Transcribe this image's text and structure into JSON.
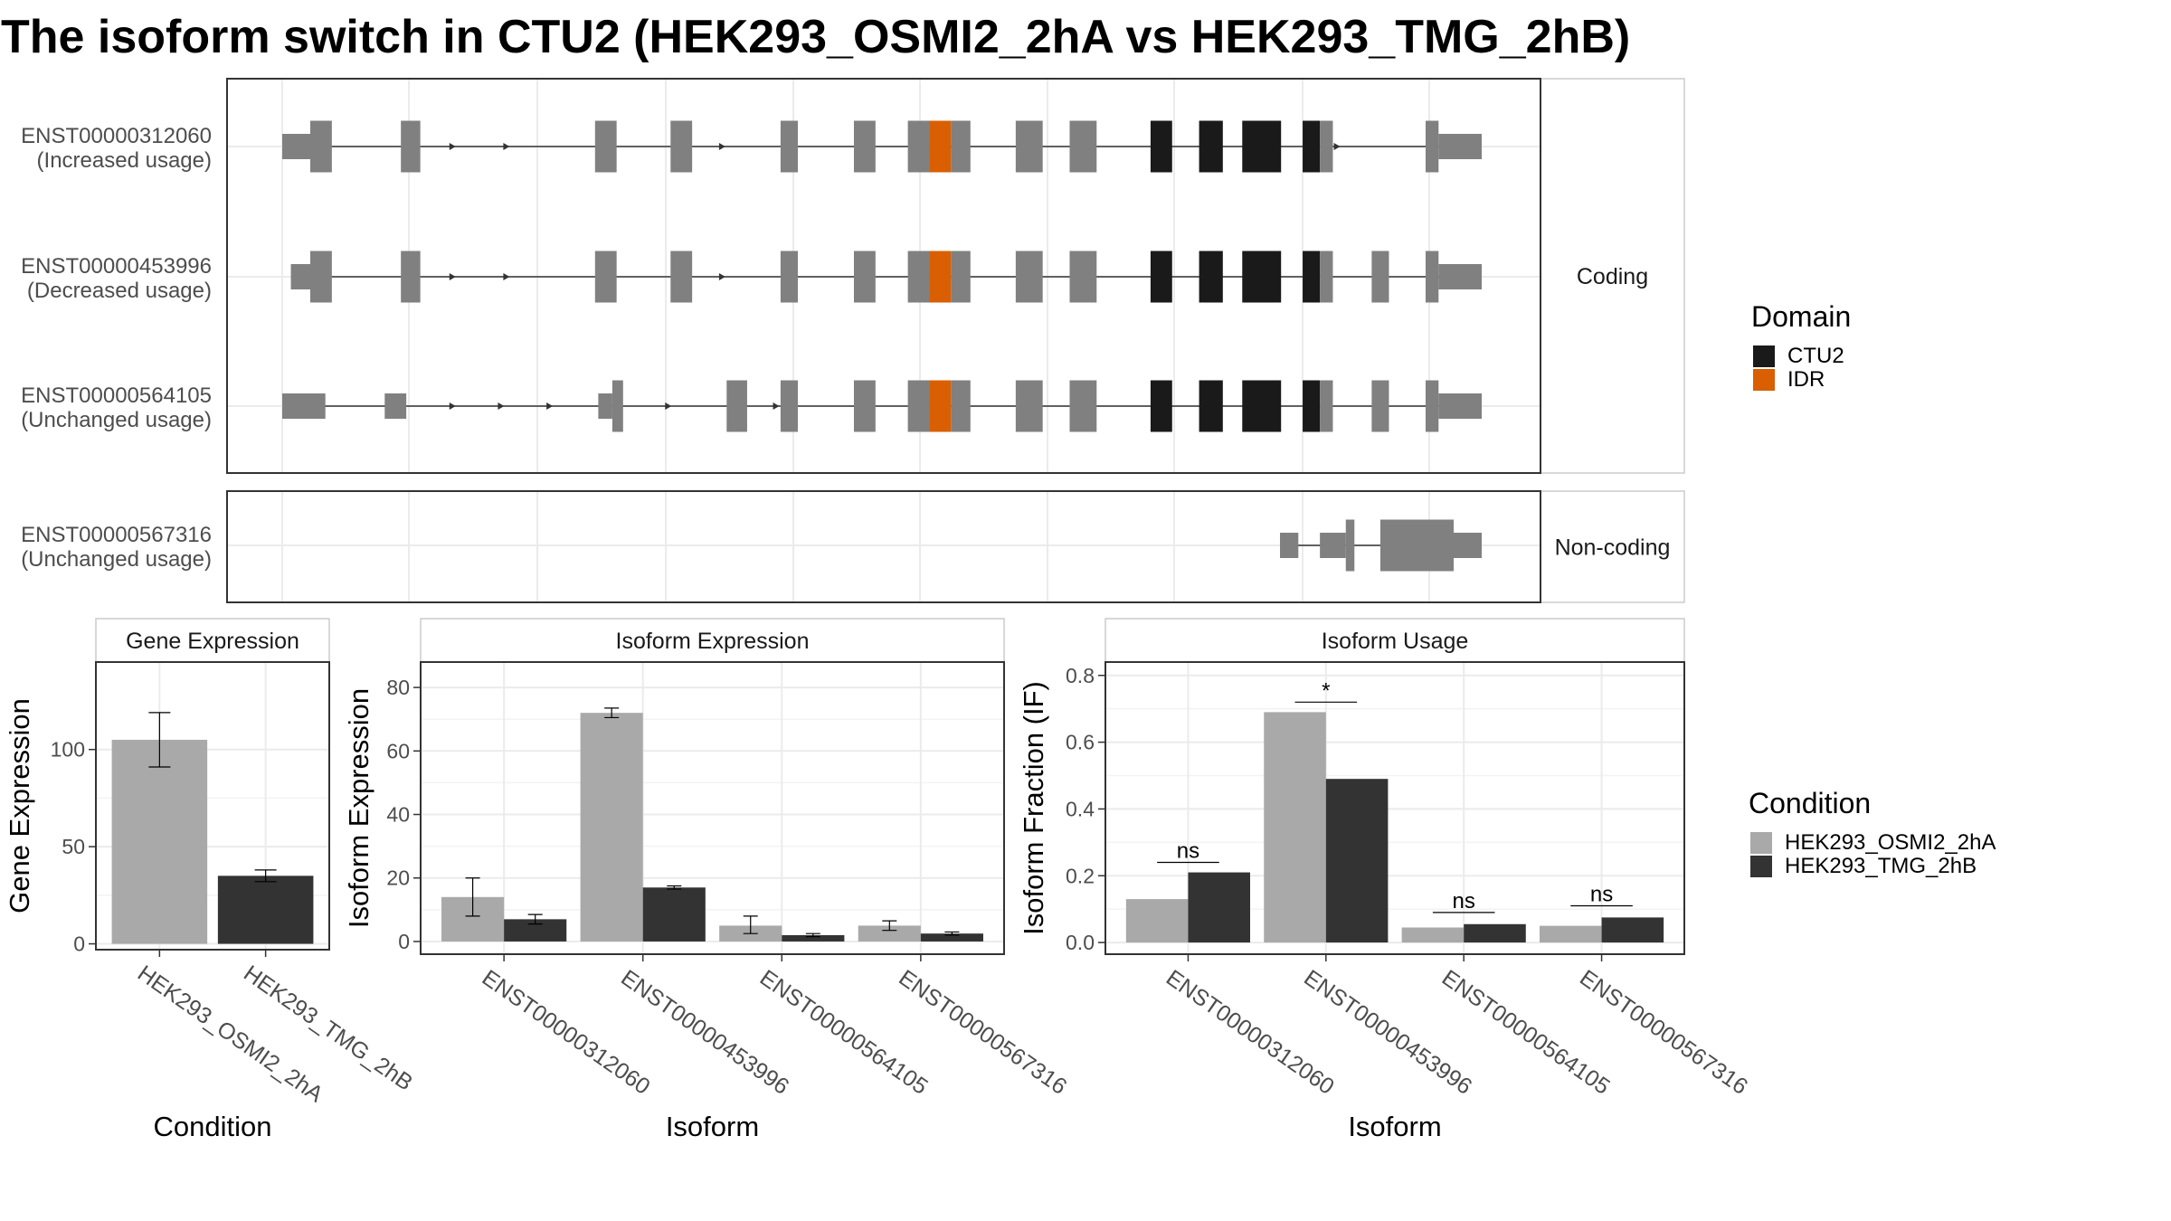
{
  "chart_data": [
    {
      "type": "isoform-structure",
      "title": "The isoform switch in CTU2 (HEK293_OSMI2_2hA vs HEK293_TMG_2hB)",
      "facets": [
        {
          "name": "Coding",
          "isoforms": [
            {
              "id": "ENST00000312060",
              "usage": "(Increased usage)",
              "exons": [
                [
                  0.0,
                  2.6,
                  "utr"
                ],
                [
                  2.6,
                  4.6,
                  "cds"
                ],
                [
                  11.0,
                  12.8,
                  "cds"
                ],
                [
                  29.0,
                  31.0,
                  "cds"
                ],
                [
                  36.0,
                  38.0,
                  "cds"
                ],
                [
                  46.2,
                  47.8,
                  "cds"
                ],
                [
                  53.0,
                  55.0,
                  "cds"
                ],
                [
                  58.0,
                  60.0,
                  "cds"
                ],
                [
                  60.0,
                  62.0,
                  "idr"
                ],
                [
                  62.0,
                  63.8,
                  "cds"
                ],
                [
                  68.0,
                  70.5,
                  "cds"
                ],
                [
                  73.0,
                  75.5,
                  "cds"
                ],
                [
                  80.5,
                  82.5,
                  "ctu2"
                ],
                [
                  85.0,
                  87.2,
                  "ctu2"
                ],
                [
                  89.0,
                  92.6,
                  "ctu2"
                ],
                [
                  94.6,
                  96.2,
                  "ctu2"
                ],
                [
                  96.2,
                  97.4,
                  "cds"
                ],
                [
                  106.0,
                  107.2,
                  "cds"
                ],
                [
                  107.2,
                  111.2,
                  "utr"
                ]
              ],
              "arrows": [
                16.0,
                21.0,
                30.5,
                41.0,
                98.0
              ]
            },
            {
              "id": "ENST00000453996",
              "usage": "(Decreased usage)",
              "exons": [
                [
                  0.8,
                  2.6,
                  "utr"
                ],
                [
                  2.6,
                  4.6,
                  "cds"
                ],
                [
                  11.0,
                  12.8,
                  "cds"
                ],
                [
                  29.0,
                  31.0,
                  "cds"
                ],
                [
                  36.0,
                  38.0,
                  "cds"
                ],
                [
                  46.2,
                  47.8,
                  "cds"
                ],
                [
                  53.0,
                  55.0,
                  "cds"
                ],
                [
                  58.0,
                  60.0,
                  "cds"
                ],
                [
                  60.0,
                  62.0,
                  "idr"
                ],
                [
                  62.0,
                  63.8,
                  "cds"
                ],
                [
                  68.0,
                  70.5,
                  "cds"
                ],
                [
                  73.0,
                  75.5,
                  "cds"
                ],
                [
                  80.5,
                  82.5,
                  "ctu2"
                ],
                [
                  85.0,
                  87.2,
                  "ctu2"
                ],
                [
                  89.0,
                  92.6,
                  "ctu2"
                ],
                [
                  94.6,
                  96.2,
                  "ctu2"
                ],
                [
                  96.2,
                  97.4,
                  "cds"
                ],
                [
                  101.0,
                  102.6,
                  "cds"
                ],
                [
                  106.0,
                  107.2,
                  "cds"
                ],
                [
                  107.2,
                  111.2,
                  "utr"
                ]
              ],
              "arrows": [
                16.0,
                21.0,
                30.5,
                41.0
              ]
            },
            {
              "id": "ENST00000564105",
              "usage": "(Unchanged usage)",
              "exons": [
                [
                  0.0,
                  4.0,
                  "utr"
                ],
                [
                  9.5,
                  11.5,
                  "utr"
                ],
                [
                  29.3,
                  30.6,
                  "utr"
                ],
                [
                  30.6,
                  31.6,
                  "cds"
                ],
                [
                  41.2,
                  43.1,
                  "cds"
                ],
                [
                  46.2,
                  47.8,
                  "cds"
                ],
                [
                  53.0,
                  55.0,
                  "cds"
                ],
                [
                  58.0,
                  60.0,
                  "cds"
                ],
                [
                  60.0,
                  62.0,
                  "idr"
                ],
                [
                  62.0,
                  63.8,
                  "cds"
                ],
                [
                  68.0,
                  70.5,
                  "cds"
                ],
                [
                  73.0,
                  75.5,
                  "cds"
                ],
                [
                  80.5,
                  82.5,
                  "ctu2"
                ],
                [
                  85.0,
                  87.2,
                  "ctu2"
                ],
                [
                  89.0,
                  92.6,
                  "ctu2"
                ],
                [
                  94.6,
                  96.2,
                  "ctu2"
                ],
                [
                  96.2,
                  97.4,
                  "cds"
                ],
                [
                  101.0,
                  102.6,
                  "cds"
                ],
                [
                  106.0,
                  107.2,
                  "cds"
                ],
                [
                  107.2,
                  111.2,
                  "utr"
                ]
              ],
              "arrows": [
                16.0,
                20.5,
                25.0,
                36.0,
                46.0
              ]
            }
          ]
        },
        {
          "name": "Non-coding",
          "isoforms": [
            {
              "id": "ENST00000567316",
              "usage": "(Unchanged usage)",
              "exons": [
                [
                  92.5,
                  94.2,
                  "nc_small"
                ],
                [
                  96.2,
                  98.6,
                  "nc_small"
                ],
                [
                  98.6,
                  99.4,
                  "nc_tall"
                ],
                [
                  101.8,
                  108.6,
                  "nc_tall"
                ],
                [
                  108.6,
                  111.2,
                  "nc_small"
                ]
              ],
              "arrows": []
            }
          ]
        }
      ],
      "legend": {
        "title": "Domain",
        "items": [
          {
            "name": "CTU2",
            "color": "#1a1a1a"
          },
          {
            "name": "IDR",
            "color": "#d95f02"
          }
        ]
      },
      "colors": {
        "exon": "#808080",
        "intron": "#333333"
      }
    },
    {
      "type": "bar",
      "title": "Gene Expression",
      "xlabel": "Condition",
      "ylabel": "Gene Expression",
      "categories": [
        "HEK293_OSMI2_2hA",
        "HEK293_TMG_2hB"
      ],
      "values": [
        105,
        35
      ],
      "errors": [
        [
          91,
          119
        ],
        [
          32,
          38
        ]
      ],
      "ylim": [
        -3,
        145
      ],
      "yticks": [
        0,
        50,
        100
      ]
    },
    {
      "type": "bar",
      "title": "Isoform Expression",
      "xlabel": "Isoform",
      "ylabel": "Isoform Expression",
      "categories": [
        "ENST00000312060",
        "ENST00000453996",
        "ENST00000564105",
        "ENST00000567316"
      ],
      "series": [
        {
          "name": "HEK293_OSMI2_2hA",
          "values": [
            14,
            72,
            5,
            5
          ],
          "errors": [
            [
              8,
              20
            ],
            [
              70.5,
              73.5
            ],
            [
              2.5,
              8
            ],
            [
              3.5,
              6.5
            ]
          ]
        },
        {
          "name": "HEK293_TMG_2hB",
          "values": [
            7,
            17,
            2,
            2.5
          ],
          "errors": [
            [
              5.5,
              8.5
            ],
            [
              16.5,
              17.5
            ],
            [
              1.5,
              2.5
            ],
            [
              2,
              3
            ]
          ]
        }
      ],
      "ylim": [
        -4,
        88
      ],
      "yticks": [
        0,
        20,
        40,
        60,
        80
      ]
    },
    {
      "type": "bar",
      "title": "Isoform Usage",
      "xlabel": "Isoform",
      "ylabel": "Isoform Fraction (IF)",
      "categories": [
        "ENST00000312060",
        "ENST00000453996",
        "ENST00000564105",
        "ENST00000567316"
      ],
      "series": [
        {
          "name": "HEK293_OSMI2_2hA",
          "values": [
            0.13,
            0.69,
            0.045,
            0.05
          ]
        },
        {
          "name": "HEK293_TMG_2hB",
          "values": [
            0.21,
            0.49,
            0.055,
            0.075
          ]
        }
      ],
      "significance": [
        {
          "label": "ns",
          "y": 0.24
        },
        {
          "label": "*",
          "y": 0.72
        },
        {
          "label": "ns",
          "y": 0.09
        },
        {
          "label": "ns",
          "y": 0.11
        }
      ],
      "ylim": [
        -0.035,
        0.84
      ],
      "yticks": [
        0.0,
        0.2,
        0.4,
        0.6,
        0.8
      ]
    }
  ],
  "condition_legend": {
    "title": "Condition",
    "items": [
      {
        "name": "HEK293_OSMI2_2hA",
        "color": "#a9a9a9"
      },
      {
        "name": "HEK293_TMG_2hB",
        "color": "#333333"
      }
    ]
  }
}
